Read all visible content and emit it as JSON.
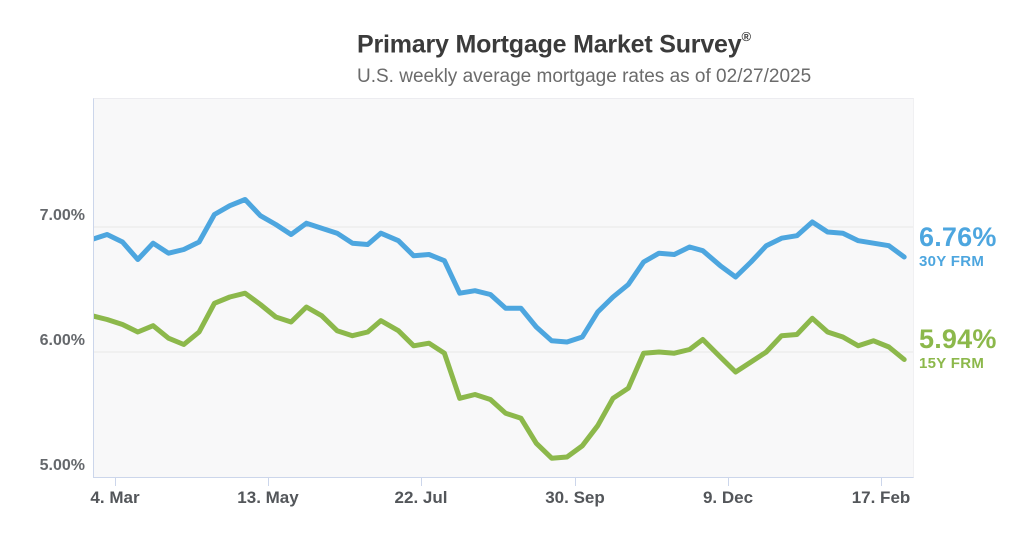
{
  "header": {
    "title": "Primary Mortgage Market Survey",
    "title_mark": "®",
    "subtitle": "U.S. weekly average mortgage rates as of 02/27/2025"
  },
  "colors": {
    "line_30y": "#4DA6DF",
    "line_15y": "#8CB84B",
    "title_text": "#3B3B3B",
    "subtitle_text": "#6B6B6B",
    "axis_line": "#CCD6EB",
    "gridline": "#E7E7E7",
    "plot_background": "#F8F8F9",
    "y_label_text": "#65686C",
    "x_label_text": "#53565A"
  },
  "chart_data": {
    "type": "line",
    "title": "Primary Mortgage Market Survey®",
    "subtitle": "U.S. weekly average mortgage rates as of 02/27/2025",
    "grid": "horizontal-only",
    "legend_position": "right-end-labels",
    "xlabel": "",
    "ylabel": "",
    "ylim": [
      5.0,
      8.024
    ],
    "xlim_dates": [
      "2024-02-23",
      "2025-03-03"
    ],
    "gridline_values": [
      7,
      6
    ],
    "y_ticks": [
      {
        "value": 7,
        "label": "7.00%"
      },
      {
        "value": 6,
        "label": "6.00%"
      },
      {
        "value": 5,
        "label": "5.00%"
      }
    ],
    "x_ticks": [
      {
        "date": "2024-03-04",
        "label": "4. Mar"
      },
      {
        "date": "2024-05-13",
        "label": "13. May"
      },
      {
        "date": "2024-07-22",
        "label": "22. Jul"
      },
      {
        "date": "2024-09-30",
        "label": "30. Sep"
      },
      {
        "date": "2024-12-09",
        "label": "9. Dec"
      },
      {
        "date": "2025-02-17",
        "label": "17. Feb"
      }
    ],
    "x": [
      "2024-02-22",
      "2024-02-29",
      "2024-03-07",
      "2024-03-14",
      "2024-03-21",
      "2024-03-28",
      "2024-04-04",
      "2024-04-11",
      "2024-04-18",
      "2024-04-25",
      "2024-05-02",
      "2024-05-09",
      "2024-05-16",
      "2024-05-23",
      "2024-05-30",
      "2024-06-06",
      "2024-06-13",
      "2024-06-20",
      "2024-06-27",
      "2024-07-03",
      "2024-07-11",
      "2024-07-18",
      "2024-07-25",
      "2024-08-01",
      "2024-08-08",
      "2024-08-15",
      "2024-08-22",
      "2024-08-29",
      "2024-09-05",
      "2024-09-12",
      "2024-09-19",
      "2024-09-26",
      "2024-10-03",
      "2024-10-10",
      "2024-10-17",
      "2024-10-24",
      "2024-10-31",
      "2024-11-07",
      "2024-11-14",
      "2024-11-21",
      "2024-11-27",
      "2024-12-05",
      "2024-12-12",
      "2024-12-19",
      "2024-12-26",
      "2025-01-02",
      "2025-01-09",
      "2025-01-16",
      "2025-01-23",
      "2025-01-30",
      "2025-02-06",
      "2025-02-13",
      "2025-02-20",
      "2025-02-27"
    ],
    "series": [
      {
        "id": "30y-frm",
        "name": "30Y FRM",
        "color": "#4DA6DF",
        "current_value_label": "6.76%",
        "values": [
          6.9,
          6.94,
          6.88,
          6.74,
          6.87,
          6.79,
          6.82,
          6.88,
          7.1,
          7.17,
          7.22,
          7.09,
          7.02,
          6.94,
          7.03,
          6.99,
          6.95,
          6.87,
          6.86,
          6.95,
          6.89,
          6.77,
          6.78,
          6.73,
          6.47,
          6.49,
          6.46,
          6.35,
          6.35,
          6.2,
          6.09,
          6.08,
          6.12,
          6.32,
          6.44,
          6.54,
          6.72,
          6.79,
          6.78,
          6.84,
          6.81,
          6.69,
          6.6,
          6.72,
          6.85,
          6.91,
          6.93,
          7.04,
          6.96,
          6.95,
          6.89,
          6.87,
          6.85,
          6.76
        ]
      },
      {
        "id": "15y-frm",
        "name": "15Y FRM",
        "color": "#8CB84B",
        "current_value_label": "5.94%",
        "values": [
          6.29,
          6.26,
          6.22,
          6.16,
          6.21,
          6.11,
          6.06,
          6.16,
          6.39,
          6.44,
          6.47,
          6.38,
          6.28,
          6.24,
          6.36,
          6.29,
          6.17,
          6.13,
          6.16,
          6.25,
          6.17,
          6.05,
          6.07,
          5.99,
          5.63,
          5.66,
          5.62,
          5.51,
          5.47,
          5.27,
          5.15,
          5.16,
          5.25,
          5.41,
          5.63,
          5.71,
          5.99,
          6.0,
          5.99,
          6.02,
          6.1,
          5.96,
          5.84,
          5.92,
          6.0,
          6.13,
          6.14,
          6.27,
          6.16,
          6.12,
          6.05,
          6.09,
          6.04,
          5.94
        ]
      }
    ]
  }
}
